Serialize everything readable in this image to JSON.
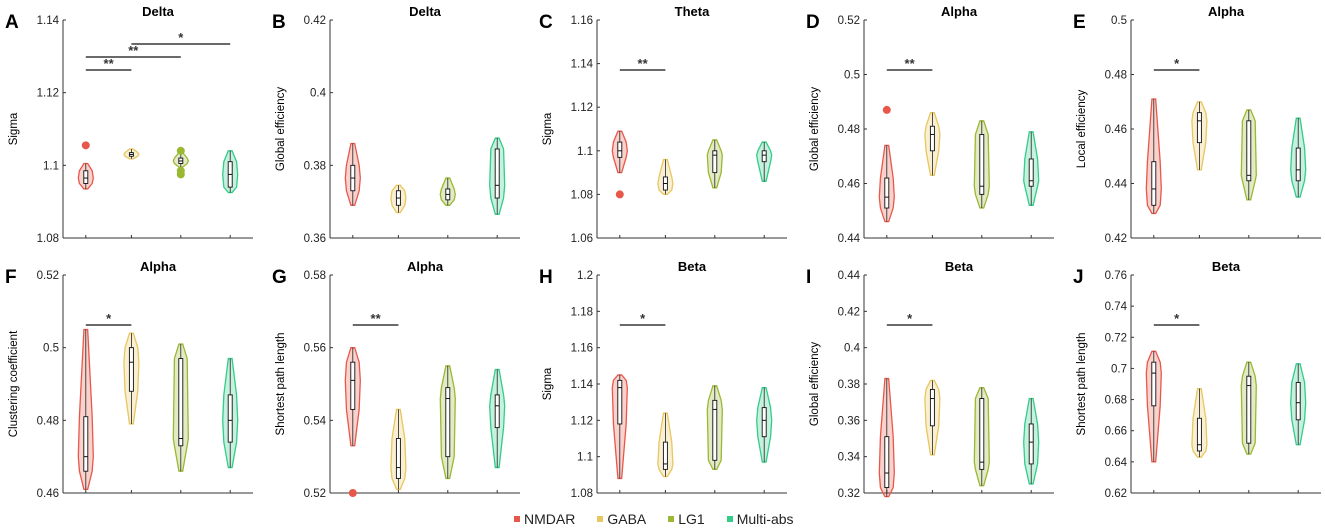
{
  "groups": [
    "NMDAR",
    "GABA",
    "LG1",
    "Multi-abs"
  ],
  "colors": {
    "NMDAR": "#e8584a",
    "GABA": "#e8c660",
    "LG1": "#9ab831",
    "Multi-abs": "#33cc88"
  },
  "legend": [
    {
      "label": "NMDAR",
      "color": "#e8584a"
    },
    {
      "label": "GABA",
      "color": "#e8c660"
    },
    {
      "label": "LG1",
      "color": "#9ab831"
    },
    {
      "label": "Multi-abs",
      "color": "#33cc88"
    }
  ],
  "chart_data": [
    {
      "panel": "A",
      "type": "violin",
      "title": "Delta",
      "ylabel": "Sigma",
      "ylim": [
        1.08,
        1.14
      ],
      "yticks": [
        "1.08",
        "1.1",
        "1.12",
        "1.14"
      ],
      "yticks_values": [
        1.08,
        1.1,
        1.12,
        1.14
      ],
      "series": [
        {
          "name": "NMDAR",
          "min": 1.0935,
          "q1": 1.095,
          "median": 1.0965,
          "q3": 1.0985,
          "max": 1.1005,
          "outliers": [
            1.1055
          ]
        },
        {
          "name": "GABA",
          "min": 1.1018,
          "q1": 1.1025,
          "median": 1.103,
          "q3": 1.1035,
          "max": 1.1045,
          "outliers": []
        },
        {
          "name": "LG1",
          "min": 1.0995,
          "q1": 1.1005,
          "median": 1.1012,
          "q3": 1.102,
          "max": 1.1035,
          "outliers": [
            1.0975,
            1.0985,
            1.104
          ]
        },
        {
          "name": "Multi-abs",
          "min": 1.0925,
          "q1": 1.094,
          "median": 1.0975,
          "q3": 1.101,
          "max": 1.104,
          "outliers": []
        }
      ],
      "significance": [
        {
          "from": 0,
          "to": 1,
          "label": "**"
        },
        {
          "from": 0,
          "to": 2,
          "label": "**"
        },
        {
          "from": 1,
          "to": 3,
          "label": "*"
        }
      ]
    },
    {
      "panel": "B",
      "type": "violin",
      "title": "Delta",
      "ylabel": "Global efficiency",
      "ylim": [
        0.36,
        0.42
      ],
      "yticks": [
        "0.36",
        "0.38",
        "0.4",
        "0.42"
      ],
      "yticks_values": [
        0.36,
        0.38,
        0.4,
        0.42
      ],
      "series": [
        {
          "name": "NMDAR",
          "min": 0.369,
          "q1": 0.373,
          "median": 0.3765,
          "q3": 0.38,
          "max": 0.386,
          "outliers": []
        },
        {
          "name": "GABA",
          "min": 0.367,
          "q1": 0.369,
          "median": 0.371,
          "q3": 0.373,
          "max": 0.3745,
          "outliers": []
        },
        {
          "name": "LG1",
          "min": 0.369,
          "q1": 0.3705,
          "median": 0.372,
          "q3": 0.3735,
          "max": 0.3765,
          "outliers": []
        },
        {
          "name": "Multi-abs",
          "min": 0.3665,
          "q1": 0.371,
          "median": 0.3745,
          "q3": 0.3845,
          "max": 0.3875,
          "outliers": []
        }
      ],
      "significance": []
    },
    {
      "panel": "C",
      "type": "violin",
      "title": "Theta",
      "ylabel": "Sigma",
      "ylim": [
        1.06,
        1.16
      ],
      "yticks": [
        "1.06",
        "1.08",
        "1.1",
        "1.12",
        "1.14",
        "1.16"
      ],
      "yticks_values": [
        1.06,
        1.08,
        1.1,
        1.12,
        1.14,
        1.16
      ],
      "series": [
        {
          "name": "NMDAR",
          "min": 1.09,
          "q1": 1.097,
          "median": 1.1,
          "q3": 1.104,
          "max": 1.109,
          "outliers": [
            1.08
          ]
        },
        {
          "name": "GABA",
          "min": 1.08,
          "q1": 1.082,
          "median": 1.085,
          "q3": 1.088,
          "max": 1.096,
          "outliers": []
        },
        {
          "name": "LG1",
          "min": 1.083,
          "q1": 1.09,
          "median": 1.098,
          "q3": 1.1,
          "max": 1.105,
          "outliers": []
        },
        {
          "name": "Multi-abs",
          "min": 1.086,
          "q1": 1.095,
          "median": 1.098,
          "q3": 1.1,
          "max": 1.104,
          "outliers": []
        }
      ],
      "significance": [
        {
          "from": 0,
          "to": 1,
          "label": "**"
        }
      ]
    },
    {
      "panel": "D",
      "type": "violin",
      "title": "Alpha",
      "ylabel": "Global efficiency",
      "ylim": [
        0.44,
        0.52
      ],
      "yticks": [
        "0.44",
        "0.46",
        "0.48",
        "0.5",
        "0.52"
      ],
      "yticks_values": [
        0.44,
        0.46,
        0.48,
        0.5,
        0.52
      ],
      "series": [
        {
          "name": "NMDAR",
          "min": 0.446,
          "q1": 0.451,
          "median": 0.455,
          "q3": 0.462,
          "max": 0.474,
          "outliers": [
            0.487
          ]
        },
        {
          "name": "GABA",
          "min": 0.463,
          "q1": 0.472,
          "median": 0.478,
          "q3": 0.481,
          "max": 0.486,
          "outliers": []
        },
        {
          "name": "LG1",
          "min": 0.451,
          "q1": 0.456,
          "median": 0.459,
          "q3": 0.478,
          "max": 0.483,
          "outliers": []
        },
        {
          "name": "Multi-abs",
          "min": 0.452,
          "q1": 0.459,
          "median": 0.461,
          "q3": 0.469,
          "max": 0.479,
          "outliers": []
        }
      ],
      "significance": [
        {
          "from": 0,
          "to": 1,
          "label": "**"
        }
      ]
    },
    {
      "panel": "E",
      "type": "violin",
      "title": "Alpha",
      "ylabel": "Local efficiency",
      "ylim": [
        0.42,
        0.5
      ],
      "yticks": [
        "0.42",
        "0.44",
        "0.46",
        "0.48",
        "0.5"
      ],
      "yticks_values": [
        0.42,
        0.44,
        0.46,
        0.48,
        0.5
      ],
      "series": [
        {
          "name": "NMDAR",
          "min": 0.429,
          "q1": 0.432,
          "median": 0.438,
          "q3": 0.448,
          "max": 0.471,
          "outliers": []
        },
        {
          "name": "GABA",
          "min": 0.445,
          "q1": 0.455,
          "median": 0.463,
          "q3": 0.466,
          "max": 0.47,
          "outliers": []
        },
        {
          "name": "LG1",
          "min": 0.434,
          "q1": 0.441,
          "median": 0.443,
          "q3": 0.463,
          "max": 0.467,
          "outliers": []
        },
        {
          "name": "Multi-abs",
          "min": 0.435,
          "q1": 0.441,
          "median": 0.445,
          "q3": 0.453,
          "max": 0.464,
          "outliers": []
        }
      ],
      "significance": [
        {
          "from": 0,
          "to": 1,
          "label": "*"
        }
      ]
    },
    {
      "panel": "F",
      "type": "violin",
      "title": "Alpha",
      "ylabel": "Clustering coefficient",
      "ylim": [
        0.46,
        0.52
      ],
      "yticks": [
        "0.46",
        "0.48",
        "0.5",
        "0.52"
      ],
      "yticks_values": [
        0.46,
        0.48,
        0.5,
        0.52
      ],
      "series": [
        {
          "name": "NMDAR",
          "min": 0.461,
          "q1": 0.466,
          "median": 0.47,
          "q3": 0.481,
          "max": 0.505,
          "outliers": []
        },
        {
          "name": "GABA",
          "min": 0.479,
          "q1": 0.488,
          "median": 0.496,
          "q3": 0.5,
          "max": 0.504,
          "outliers": []
        },
        {
          "name": "LG1",
          "min": 0.466,
          "q1": 0.473,
          "median": 0.475,
          "q3": 0.497,
          "max": 0.501,
          "outliers": []
        },
        {
          "name": "Multi-abs",
          "min": 0.467,
          "q1": 0.474,
          "median": 0.48,
          "q3": 0.487,
          "max": 0.497,
          "outliers": []
        }
      ],
      "significance": [
        {
          "from": 0,
          "to": 1,
          "label": "*"
        }
      ]
    },
    {
      "panel": "G",
      "type": "violin",
      "title": "Alpha",
      "ylabel": "Shortest path length",
      "ylim": [
        0.52,
        0.58
      ],
      "yticks": [
        "0.52",
        "0.54",
        "0.56",
        "0.58"
      ],
      "yticks_values": [
        0.52,
        0.54,
        0.56,
        0.58
      ],
      "series": [
        {
          "name": "NMDAR",
          "min": 0.533,
          "q1": 0.543,
          "median": 0.551,
          "q3": 0.556,
          "max": 0.56,
          "outliers": [
            0.52
          ]
        },
        {
          "name": "GABA",
          "min": 0.521,
          "q1": 0.524,
          "median": 0.527,
          "q3": 0.535,
          "max": 0.543,
          "outliers": []
        },
        {
          "name": "LG1",
          "min": 0.524,
          "q1": 0.53,
          "median": 0.546,
          "q3": 0.549,
          "max": 0.555,
          "outliers": []
        },
        {
          "name": "Multi-abs",
          "min": 0.527,
          "q1": 0.538,
          "median": 0.544,
          "q3": 0.547,
          "max": 0.554,
          "outliers": []
        }
      ],
      "significance": [
        {
          "from": 0,
          "to": 1,
          "label": "**"
        }
      ]
    },
    {
      "panel": "H",
      "type": "violin",
      "title": "Beta",
      "ylabel": "Sigma",
      "ylim": [
        1.08,
        1.2
      ],
      "yticks": [
        "1.08",
        "1.1",
        "1.12",
        "1.14",
        "1.16",
        "1.18",
        "1.2"
      ],
      "yticks_values": [
        1.08,
        1.1,
        1.12,
        1.14,
        1.16,
        1.18,
        1.2
      ],
      "series": [
        {
          "name": "NMDAR",
          "min": 1.088,
          "q1": 1.118,
          "median": 1.138,
          "q3": 1.142,
          "max": 1.145,
          "outliers": []
        },
        {
          "name": "GABA",
          "min": 1.089,
          "q1": 1.093,
          "median": 1.096,
          "q3": 1.108,
          "max": 1.124,
          "outliers": []
        },
        {
          "name": "LG1",
          "min": 1.093,
          "q1": 1.098,
          "median": 1.126,
          "q3": 1.131,
          "max": 1.139,
          "outliers": []
        },
        {
          "name": "Multi-abs",
          "min": 1.097,
          "q1": 1.111,
          "median": 1.12,
          "q3": 1.127,
          "max": 1.138,
          "outliers": []
        }
      ],
      "significance": [
        {
          "from": 0,
          "to": 1,
          "label": "*"
        }
      ]
    },
    {
      "panel": "I",
      "type": "violin",
      "title": "Beta",
      "ylabel": "Global efficiency",
      "ylim": [
        0.32,
        0.44
      ],
      "yticks": [
        "0.32",
        "0.34",
        "0.36",
        "0.38",
        "0.4",
        "0.42",
        "0.44"
      ],
      "yticks_values": [
        0.32,
        0.34,
        0.36,
        0.38,
        0.4,
        0.42,
        0.44
      ],
      "series": [
        {
          "name": "NMDAR",
          "min": 0.318,
          "q1": 0.323,
          "median": 0.331,
          "q3": 0.351,
          "max": 0.383,
          "outliers": []
        },
        {
          "name": "GABA",
          "min": 0.341,
          "q1": 0.357,
          "median": 0.372,
          "q3": 0.377,
          "max": 0.382,
          "outliers": []
        },
        {
          "name": "LG1",
          "min": 0.324,
          "q1": 0.333,
          "median": 0.337,
          "q3": 0.372,
          "max": 0.378,
          "outliers": []
        },
        {
          "name": "Multi-abs",
          "min": 0.325,
          "q1": 0.336,
          "median": 0.348,
          "q3": 0.358,
          "max": 0.372,
          "outliers": []
        }
      ],
      "significance": [
        {
          "from": 0,
          "to": 1,
          "label": "*"
        }
      ]
    },
    {
      "panel": "J",
      "type": "violin",
      "title": "Beta",
      "ylabel": "Shortest path length",
      "ylim": [
        0.62,
        0.76
      ],
      "yticks": [
        "0.62",
        "0.64",
        "0.66",
        "0.68",
        "0.7",
        "0.72",
        "0.74",
        "0.76"
      ],
      "yticks_values": [
        0.62,
        0.64,
        0.66,
        0.68,
        0.7,
        0.72,
        0.74,
        0.76
      ],
      "series": [
        {
          "name": "NMDAR",
          "min": 0.64,
          "q1": 0.676,
          "median": 0.697,
          "q3": 0.704,
          "max": 0.711,
          "outliers": []
        },
        {
          "name": "GABA",
          "min": 0.643,
          "q1": 0.647,
          "median": 0.651,
          "q3": 0.668,
          "max": 0.687,
          "outliers": []
        },
        {
          "name": "LG1",
          "min": 0.645,
          "q1": 0.652,
          "median": 0.689,
          "q3": 0.695,
          "max": 0.704,
          "outliers": []
        },
        {
          "name": "Multi-abs",
          "min": 0.651,
          "q1": 0.667,
          "median": 0.678,
          "q3": 0.691,
          "max": 0.703,
          "outliers": []
        }
      ],
      "significance": [
        {
          "from": 0,
          "to": 1,
          "label": "*"
        }
      ]
    }
  ]
}
